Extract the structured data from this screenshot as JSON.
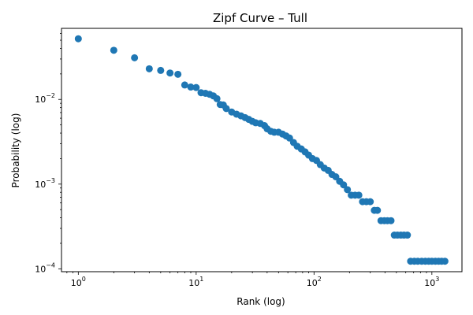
{
  "chart_data": {
    "type": "scatter",
    "title": "Zipf Curve – Tull",
    "xlabel": "Rank (log)",
    "ylabel": "Probability (log)",
    "xscale": "log",
    "yscale": "log",
    "xlim": [
      0.72,
      1800
    ],
    "ylim": [
      9.25e-05,
      0.069
    ],
    "grid": false,
    "x_ticks": [
      {
        "base": "10",
        "exp": "0"
      },
      {
        "base": "10",
        "exp": "1"
      },
      {
        "base": "10",
        "exp": "2"
      },
      {
        "base": "10",
        "exp": "3"
      }
    ],
    "y_ticks": [
      {
        "base": "10",
        "exp": "−4"
      },
      {
        "base": "10",
        "exp": "−3"
      },
      {
        "base": "10",
        "exp": "−2"
      }
    ],
    "x_tick_values": [
      1,
      10,
      100,
      1000
    ],
    "y_tick_values": [
      0.0001,
      0.001,
      0.01
    ],
    "marker_color": "#1f77b4",
    "series": [
      {
        "points": [
          [
            1,
            0.052
          ],
          [
            2,
            0.038
          ],
          [
            3,
            0.031
          ],
          [
            4,
            0.023
          ],
          [
            5,
            0.022
          ],
          [
            6,
            0.0205
          ],
          [
            7,
            0.0198
          ],
          [
            8,
            0.0148
          ],
          [
            9,
            0.014
          ],
          [
            10,
            0.0138
          ],
          [
            11,
            0.012
          ],
          [
            12,
            0.0118
          ],
          [
            13,
            0.0115
          ],
          [
            14,
            0.011
          ],
          [
            15,
            0.0102
          ],
          [
            16,
            0.0087
          ],
          [
            17,
            0.0086
          ],
          [
            18,
            0.0078
          ],
          [
            20,
            0.0071
          ],
          [
            22,
            0.0067
          ],
          [
            24,
            0.0064
          ],
          [
            26,
            0.0061
          ],
          [
            28,
            0.0058
          ],
          [
            30,
            0.0055
          ],
          [
            32,
            0.0053
          ],
          [
            35,
            0.0052
          ],
          [
            38,
            0.0049
          ],
          [
            40,
            0.0045
          ],
          [
            43,
            0.0042
          ],
          [
            46,
            0.0041
          ],
          [
            50,
            0.0041
          ],
          [
            54,
            0.0039
          ],
          [
            58,
            0.0037
          ],
          [
            62,
            0.0035
          ],
          [
            67,
            0.0031
          ],
          [
            72,
            0.0028
          ],
          [
            78,
            0.0026
          ],
          [
            84,
            0.0024
          ],
          [
            90,
            0.0022
          ],
          [
            97,
            0.002
          ],
          [
            105,
            0.0019
          ],
          [
            113,
            0.0017
          ],
          [
            122,
            0.00155
          ],
          [
            132,
            0.00145
          ],
          [
            142,
            0.0013
          ],
          [
            153,
            0.00122
          ],
          [
            165,
            0.00108
          ],
          [
            178,
            0.00098
          ],
          [
            192,
            0.00086
          ],
          [
            207,
            0.00074
          ],
          [
            223,
            0.00074
          ],
          [
            240,
            0.00074
          ],
          [
            258,
            0.00062
          ],
          [
            278,
            0.00062
          ],
          [
            300,
            0.00062
          ],
          [
            325,
            0.00049
          ],
          [
            345,
            0.00049
          ],
          [
            370,
            0.00037
          ],
          [
            395,
            0.00037
          ],
          [
            420,
            0.00037
          ],
          [
            450,
            0.00037
          ],
          [
            480,
            0.00025
          ],
          [
            510,
            0.00025
          ],
          [
            545,
            0.00025
          ],
          [
            580,
            0.00025
          ],
          [
            620,
            0.00025
          ],
          [
            660,
            0.000123
          ],
          [
            710,
            0.000123
          ],
          [
            760,
            0.000123
          ],
          [
            820,
            0.000123
          ],
          [
            880,
            0.000123
          ],
          [
            940,
            0.000123
          ],
          [
            1000,
            0.000123
          ],
          [
            1070,
            0.000123
          ],
          [
            1140,
            0.000123
          ],
          [
            1210,
            0.000123
          ],
          [
            1290,
            0.000123
          ]
        ]
      }
    ]
  }
}
